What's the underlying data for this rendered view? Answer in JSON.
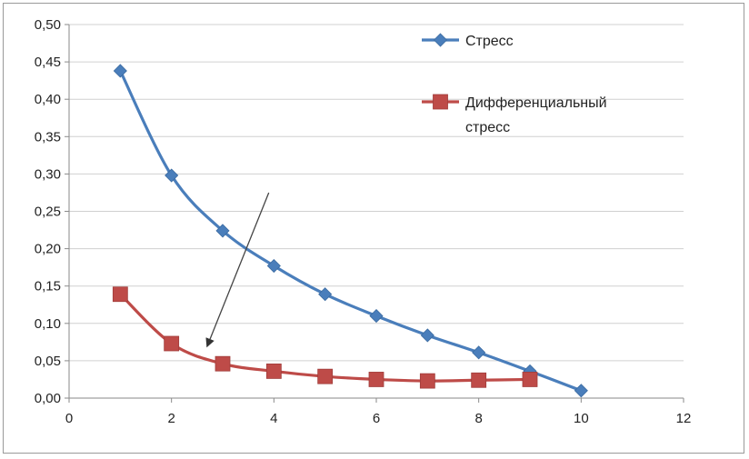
{
  "chart_data": {
    "type": "line",
    "title": "",
    "xlabel": "",
    "ylabel": "",
    "xlim": [
      0,
      12
    ],
    "ylim": [
      0,
      0.5
    ],
    "x_ticks": [
      "0",
      "2",
      "4",
      "6",
      "8",
      "10",
      "12"
    ],
    "y_ticks": [
      "0,00",
      "0,05",
      "0,10",
      "0,15",
      "0,20",
      "0,25",
      "0,30",
      "0,35",
      "0,40",
      "0,45",
      "0,50"
    ],
    "grid": "horizontal",
    "legend_position": "top-right",
    "smooth": true,
    "series": [
      {
        "name": "Стресс",
        "marker": "diamond",
        "color": "#4a7ebb",
        "x": [
          1,
          2,
          3,
          4,
          5,
          6,
          7,
          8,
          9,
          10
        ],
        "y": [
          0.438,
          0.298,
          0.224,
          0.177,
          0.139,
          0.11,
          0.084,
          0.061,
          0.036,
          0.01
        ]
      },
      {
        "name_lines": [
          "Дифференциальный",
          "стресс"
        ],
        "marker": "square",
        "color": "#be4b48",
        "x": [
          1,
          2,
          3,
          4,
          5,
          6,
          7,
          8,
          9
        ],
        "y": [
          0.139,
          0.073,
          0.046,
          0.036,
          0.029,
          0.025,
          0.023,
          0.024,
          0.025
        ]
      }
    ],
    "annotations": [
      {
        "type": "arrow",
        "from": [
          3.9,
          0.275
        ],
        "to": [
          2.7,
          0.07
        ],
        "color": "#444444"
      }
    ]
  }
}
